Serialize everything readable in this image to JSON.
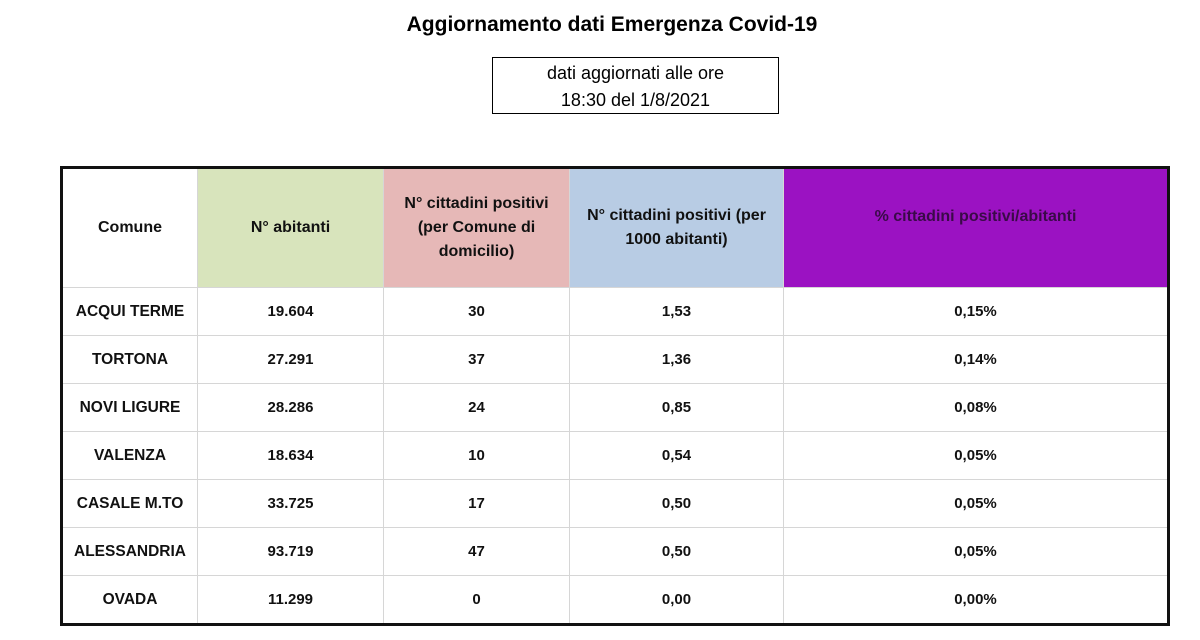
{
  "title": "Aggiornamento dati Emergenza Covid-19",
  "update_box": {
    "line1": "dati aggiornati alle ore",
    "line2": "18:30 del 1/8/2021"
  },
  "table": {
    "headers": [
      "Comune",
      "N° abitanti",
      "N° cittadini positivi (per Comune di domicilio)",
      "N° cittadini positivi (per 1000 abitanti)",
      "% cittadini positivi/abitanti"
    ],
    "header_colors": [
      "#ffffff",
      "#d8e4bc",
      "#e6b8b7",
      "#b8cce4",
      "#9b12c2"
    ],
    "rows": [
      [
        "ACQUI TERME",
        "19.604",
        "30",
        "1,53",
        "0,15%"
      ],
      [
        "TORTONA",
        "27.291",
        "37",
        "1,36",
        "0,14%"
      ],
      [
        "NOVI LIGURE",
        "28.286",
        "24",
        "0,85",
        "0,08%"
      ],
      [
        "VALENZA",
        "18.634",
        "10",
        "0,54",
        "0,05%"
      ],
      [
        "CASALE M.TO",
        "33.725",
        "17",
        "0,50",
        "0,05%"
      ],
      [
        "ALESSANDRIA",
        "93.719",
        "47",
        "0,50",
        "0,05%"
      ],
      [
        "OVADA",
        "11.299",
        "0",
        "0,00",
        "0,00%"
      ]
    ]
  }
}
